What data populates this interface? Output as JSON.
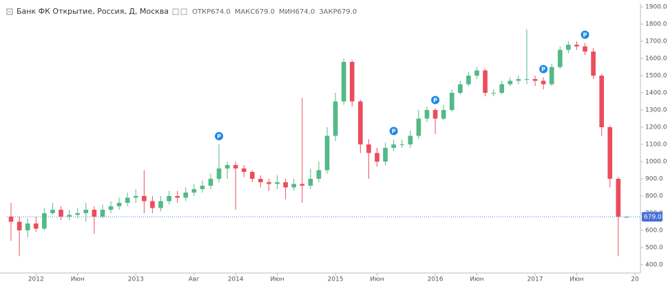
{
  "chart_data": {
    "type": "candlestick",
    "title": "Банк ФК Открытие, Россия, Д, Москва",
    "ohlc_labels": [
      {
        "name": "ОТКР",
        "value": {
          "value": 674,
          "label": "674.0"
        }
      },
      {
        "name": "МАКС",
        "value": {
          "value": 679,
          "label": "679.0"
        }
      },
      {
        "name": "МИН",
        "value": {
          "value": 674,
          "label": "674.0"
        }
      },
      {
        "name": "ЗАКР",
        "value": {
          "value": 679,
          "label": "679.0"
        }
      }
    ],
    "last_price": {
      "value": 679,
      "label": "679.0"
    },
    "up_color": "#53b987",
    "down_color": "#eb4d5c",
    "last_color": "#4a6ed8",
    "x": [
      -3,
      -2,
      -1,
      0,
      1,
      2,
      3,
      4,
      5,
      6,
      7,
      8,
      9,
      10,
      11,
      12,
      13,
      14,
      15,
      16,
      17,
      18,
      19,
      20,
      21,
      22,
      23,
      24,
      25,
      26,
      27,
      28,
      29,
      30,
      31,
      32,
      33,
      34,
      35,
      36,
      37,
      38,
      39,
      40,
      41,
      42,
      43,
      44,
      45,
      46,
      47,
      48,
      49,
      50,
      51,
      52,
      53,
      54,
      55,
      56,
      57,
      58,
      59,
      60,
      61,
      62,
      63,
      64,
      65,
      66,
      67,
      68,
      69,
      70,
      71
    ],
    "open": [
      680,
      650,
      600,
      640,
      610,
      700,
      720,
      680,
      690,
      700,
      720,
      680,
      720,
      740,
      760,
      790,
      800,
      770,
      730,
      770,
      800,
      790,
      820,
      840,
      860,
      900,
      960,
      980,
      960,
      940,
      900,
      880,
      870,
      880,
      850,
      870,
      860,
      900,
      950,
      1150,
      1350,
      1580,
      1350,
      1100,
      1050,
      1000,
      1080,
      1100,
      1100,
      1150,
      1250,
      1300,
      1250,
      1300,
      1400,
      1450,
      1500,
      1530,
      1400,
      1400,
      1450,
      1470,
      1480,
      1480,
      1470,
      1450,
      1550,
      1650,
      1680,
      1670,
      1640,
      1500,
      1200,
      900,
      674
    ],
    "high": [
      760,
      680,
      670,
      680,
      730,
      760,
      740,
      720,
      730,
      760,
      740,
      750,
      770,
      790,
      820,
      840,
      950,
      800,
      800,
      830,
      830,
      850,
      870,
      890,
      930,
      1100,
      1000,
      1000,
      980,
      950,
      920,
      900,
      920,
      900,
      900,
      1370,
      960,
      1000,
      1200,
      1400,
      1600,
      1590,
      1360,
      1130,
      1080,
      1110,
      1130,
      1130,
      1180,
      1300,
      1320,
      1310,
      1330,
      1420,
      1470,
      1520,
      1550,
      1540,
      1420,
      1470,
      1490,
      1500,
      1770,
      1500,
      1490,
      1570,
      1670,
      1700,
      1700,
      1690,
      1660,
      1510,
      1210,
      910,
      679
    ],
    "low": [
      540,
      450,
      560,
      590,
      600,
      690,
      660,
      660,
      670,
      650,
      580,
      670,
      700,
      720,
      740,
      760,
      700,
      700,
      710,
      750,
      760,
      770,
      800,
      820,
      840,
      880,
      900,
      720,
      910,
      880,
      850,
      830,
      840,
      780,
      830,
      760,
      840,
      880,
      930,
      1120,
      1330,
      1320,
      1050,
      900,
      970,
      980,
      1060,
      1080,
      1080,
      1130,
      1230,
      1160,
      1240,
      1290,
      1390,
      1440,
      1480,
      1380,
      1380,
      1390,
      1440,
      1450,
      1450,
      1440,
      1420,
      1440,
      1540,
      1630,
      1650,
      1620,
      1480,
      1150,
      850,
      450,
      674
    ],
    "close": [
      650,
      600,
      640,
      610,
      700,
      720,
      680,
      690,
      700,
      720,
      680,
      720,
      740,
      760,
      790,
      800,
      770,
      730,
      770,
      800,
      790,
      820,
      840,
      860,
      900,
      960,
      980,
      960,
      940,
      900,
      880,
      870,
      880,
      850,
      870,
      860,
      900,
      950,
      1150,
      1350,
      1580,
      1350,
      1100,
      1050,
      1000,
      1080,
      1100,
      1100,
      1150,
      1250,
      1300,
      1250,
      1300,
      1400,
      1450,
      1500,
      1530,
      1400,
      1400,
      1450,
      1470,
      1480,
      1480,
      1470,
      1450,
      1550,
      1650,
      1680,
      1670,
      1640,
      1500,
      1200,
      900,
      680,
      679
    ],
    "events": {
      "x": [
        22,
        43,
        48,
        61,
        66
      ],
      "label": "Р",
      "color": "#1e88e5"
    },
    "xlim": [
      -3.5,
      72.5
    ],
    "xticks": [
      {
        "value": 0,
        "label": "2012"
      },
      {
        "value": 5,
        "label": "Июн"
      },
      {
        "value": 12,
        "label": "2013"
      },
      {
        "value": 19,
        "label": "Авг"
      },
      {
        "value": 24,
        "label": "2014"
      },
      {
        "value": 29,
        "label": "Июн"
      },
      {
        "value": 36,
        "label": "2015"
      },
      {
        "value": 41,
        "label": "Июн"
      },
      {
        "value": 48,
        "label": "2016"
      },
      {
        "value": 53,
        "label": "Июн"
      },
      {
        "value": 60,
        "label": "2017"
      },
      {
        "value": 65,
        "label": "Июн"
      },
      {
        "value": 72,
        "label": "20"
      }
    ],
    "ylim": [
      400,
      1900
    ],
    "yticks": [
      {
        "value": 400,
        "label": "400.0"
      },
      {
        "value": 500,
        "label": "500.0"
      },
      {
        "value": 600,
        "label": "600.0"
      },
      {
        "value": 700,
        "label": "700.0"
      },
      {
        "value": 800,
        "label": "800.0"
      },
      {
        "value": 900,
        "label": "900.0"
      },
      {
        "value": 1000,
        "label": "1000.0"
      },
      {
        "value": 1100,
        "label": "1100.0"
      },
      {
        "value": 1200,
        "label": "1200.0"
      },
      {
        "value": 1300,
        "label": "1300.0"
      },
      {
        "value": 1400,
        "label": "1400.0"
      },
      {
        "value": 1500,
        "label": "1500.0"
      },
      {
        "value": 1600,
        "label": "1600.0"
      },
      {
        "value": 1700,
        "label": "1700.0"
      },
      {
        "value": 1800,
        "label": "1800.0"
      },
      {
        "value": 1900,
        "label": "1900.0"
      }
    ]
  }
}
